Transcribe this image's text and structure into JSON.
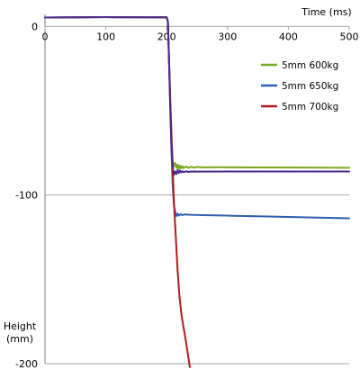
{
  "chart_data": {
    "type": "line",
    "title": "",
    "xlabel": "Time (ms)",
    "ylabel": "Height (mm)",
    "ylabel_lines": [
      "Height",
      "(mm)"
    ],
    "xlim": [
      0,
      500
    ],
    "ylim": [
      -200,
      5
    ],
    "x_ticks": [
      0,
      100,
      200,
      300,
      400,
      500
    ],
    "y_ticks": [
      0,
      -100,
      -200
    ],
    "y_grid_lines": [
      0,
      -100,
      -200
    ],
    "legend_position": "right",
    "series": [
      {
        "name": "5mm 600kg",
        "color": "#7aa81e",
        "points": [
          [
            0,
            5.3
          ],
          [
            100,
            5.5
          ],
          [
            200,
            5.4
          ],
          [
            202,
            3
          ],
          [
            204,
            -20
          ],
          [
            206,
            -45
          ],
          [
            208,
            -68
          ],
          [
            210,
            -80
          ],
          [
            212,
            -83
          ],
          [
            214,
            -81
          ],
          [
            216,
            -84
          ],
          [
            218,
            -82
          ],
          [
            220,
            -84.5
          ],
          [
            222,
            -82.5
          ],
          [
            224,
            -84.2
          ],
          [
            226,
            -82.8
          ],
          [
            228,
            -84
          ],
          [
            232,
            -83
          ],
          [
            236,
            -83.9
          ],
          [
            240,
            -83.2
          ],
          [
            245,
            -83.8
          ],
          [
            250,
            -83.3
          ],
          [
            260,
            -83.6
          ],
          [
            280,
            -83.5
          ],
          [
            350,
            -83.6
          ],
          [
            420,
            -83.7
          ],
          [
            500,
            -83.8
          ]
        ]
      },
      {
        "name": "5mm 650kg",
        "color": "#2b5fb0",
        "points": [
          [
            0,
            5.3
          ],
          [
            100,
            5.5
          ],
          [
            200,
            5.4
          ],
          [
            202,
            3
          ],
          [
            204,
            -22
          ],
          [
            206,
            -50
          ],
          [
            208,
            -75
          ],
          [
            210,
            -95
          ],
          [
            212,
            -106
          ],
          [
            214,
            -110
          ],
          [
            216,
            -112.5
          ],
          [
            218,
            -111
          ],
          [
            220,
            -112.2
          ],
          [
            223,
            -111.3
          ],
          [
            226,
            -111.9
          ],
          [
            230,
            -111.5
          ],
          [
            240,
            -111.7
          ],
          [
            260,
            -111.9
          ],
          [
            300,
            -112.2
          ],
          [
            350,
            -112.6
          ],
          [
            400,
            -113
          ],
          [
            450,
            -113.4
          ],
          [
            500,
            -113.8
          ]
        ]
      },
      {
        "name": "5mm 700kg",
        "color": "#b01c1c",
        "points": [
          [
            0,
            5.3
          ],
          [
            100,
            5.5
          ],
          [
            200,
            5.4
          ],
          [
            202,
            3
          ],
          [
            204,
            -22
          ],
          [
            206,
            -45
          ],
          [
            208,
            -65
          ],
          [
            210,
            -85
          ],
          [
            212,
            -105
          ],
          [
            215,
            -125
          ],
          [
            218,
            -145
          ],
          [
            221,
            -160
          ],
          [
            224,
            -170
          ],
          [
            227,
            -177
          ],
          [
            230,
            -183
          ],
          [
            233,
            -190
          ],
          [
            236,
            -197
          ],
          [
            238,
            -202
          ]
        ]
      },
      {
        "name": "",
        "color": "#4b2a8c",
        "points": [
          [
            0,
            5.3
          ],
          [
            100,
            5.5
          ],
          [
            200,
            5.4
          ],
          [
            202,
            3
          ],
          [
            204,
            -22
          ],
          [
            206,
            -50
          ],
          [
            208,
            -72
          ],
          [
            210,
            -84
          ],
          [
            212,
            -88
          ],
          [
            214,
            -86
          ],
          [
            216,
            -87.5
          ],
          [
            218,
            -85.2
          ],
          [
            220,
            -87
          ],
          [
            222,
            -85.5
          ],
          [
            224,
            -86.6
          ],
          [
            226,
            -85.8
          ],
          [
            228,
            -86.4
          ],
          [
            232,
            -85.9
          ],
          [
            236,
            -86.3
          ],
          [
            240,
            -86
          ],
          [
            250,
            -86.1
          ],
          [
            300,
            -86
          ],
          [
            400,
            -86
          ],
          [
            500,
            -86
          ]
        ]
      }
    ],
    "legend_series": [
      0,
      1,
      2
    ]
  }
}
